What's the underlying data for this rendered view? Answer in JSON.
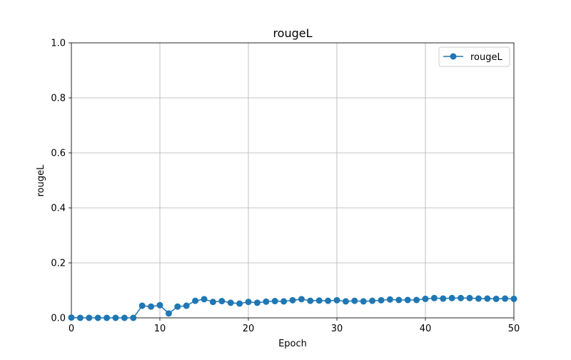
{
  "chart_data": {
    "type": "line",
    "title": "rougeL",
    "xlabel": "Epoch",
    "ylabel": "rougeL",
    "xlim": [
      0,
      50
    ],
    "ylim": [
      0,
      1.0
    ],
    "xticks": [
      0,
      10,
      20,
      30,
      40,
      50
    ],
    "yticks": [
      0.0,
      0.2,
      0.4,
      0.6,
      0.8,
      1.0
    ],
    "xtick_labels": [
      "0",
      "10",
      "20",
      "30",
      "40",
      "50"
    ],
    "ytick_labels": [
      "0.0",
      "0.2",
      "0.4",
      "0.6",
      "0.8",
      "1.0"
    ],
    "grid": true,
    "legend_position": "top-right",
    "series": [
      {
        "name": "rougeL",
        "color": "#1f77b4",
        "marker": "circle",
        "x": [
          0,
          1,
          2,
          3,
          4,
          5,
          6,
          7,
          8,
          9,
          10,
          11,
          12,
          13,
          14,
          15,
          16,
          17,
          18,
          19,
          20,
          21,
          22,
          23,
          24,
          25,
          26,
          27,
          28,
          29,
          30,
          31,
          32,
          33,
          34,
          35,
          36,
          37,
          38,
          39,
          40,
          41,
          42,
          43,
          44,
          45,
          46,
          47,
          48,
          49,
          50
        ],
        "y": [
          0.001,
          0,
          0,
          0,
          0,
          0,
          0,
          0,
          0.044,
          0.041,
          0.046,
          0.016,
          0.041,
          0.044,
          0.062,
          0.068,
          0.058,
          0.061,
          0.055,
          0.052,
          0.058,
          0.055,
          0.059,
          0.061,
          0.06,
          0.064,
          0.068,
          0.062,
          0.063,
          0.062,
          0.064,
          0.06,
          0.062,
          0.06,
          0.062,
          0.064,
          0.067,
          0.065,
          0.065,
          0.065,
          0.069,
          0.072,
          0.07,
          0.072,
          0.072,
          0.072,
          0.07,
          0.07,
          0.069,
          0.07,
          0.069
        ]
      }
    ]
  }
}
